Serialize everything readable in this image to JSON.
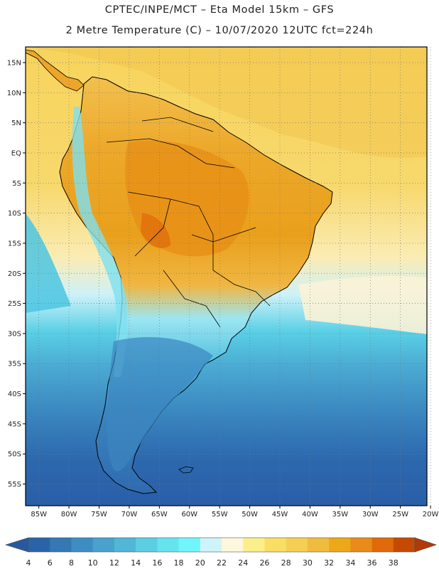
{
  "header": {
    "line1": "CPTEC/INPE/MCT –   Eta Model 15km – GFS",
    "line2": "2 Metre Temperature (C) – 10/07/2020 12UTC fct=224h"
  },
  "axes": {
    "lat_labels": [
      "15N",
      "10N",
      "5N",
      "EQ",
      "5S",
      "10S",
      "15S",
      "20S",
      "25S",
      "30S",
      "35S",
      "40S",
      "45S",
      "50S",
      "55S"
    ],
    "lat_values": [
      15,
      10,
      5,
      0,
      -5,
      -10,
      -15,
      -20,
      -25,
      -30,
      -35,
      -40,
      -45,
      -50,
      -55
    ],
    "lon_labels": [
      "85W",
      "80W",
      "75W",
      "70W",
      "65W",
      "60W",
      "55W",
      "50W",
      "45W",
      "40W",
      "35W",
      "30W",
      "25W",
      "20W"
    ],
    "lon_values": [
      -85,
      -80,
      -75,
      -70,
      -65,
      -60,
      -55,
      -50,
      -45,
      -40,
      -35,
      -30,
      -25,
      -20
    ]
  },
  "colorbar": {
    "labels": [
      "4",
      "6",
      "8",
      "10",
      "12",
      "14",
      "16",
      "18",
      "20",
      "22",
      "24",
      "26",
      "28",
      "30",
      "32",
      "34",
      "36",
      "38"
    ],
    "colors": [
      "#2a64a8",
      "#3478b4",
      "#3e8dc2",
      "#48a2cc",
      "#52b6d6",
      "#5ccde2",
      "#66e4ee",
      "#70f6fa",
      "#cef4fa",
      "#fdf7dc",
      "#fbef8c",
      "#f8de64",
      "#f4cf54",
      "#f0bc40",
      "#eca818",
      "#e88b1a",
      "#e06a0a",
      "#c44a04"
    ],
    "left_color": "#2a58a0",
    "right_color": "#b03a0a"
  },
  "colors": {
    "ocean_north": "#f6d560",
    "ocean_mid": "#faf0c8",
    "ocean_south": "#48b8d8",
    "ocean_deep": "#2a5ea8",
    "land_warm": "#eca21e",
    "land_cool": "#60d0e6",
    "border": "#000000"
  }
}
